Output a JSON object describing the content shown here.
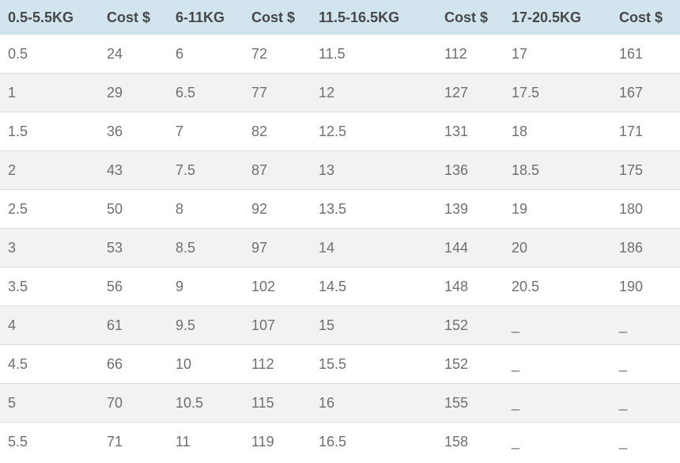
{
  "colors": {
    "header_bg": "#d2e4ee",
    "header_text": "#474747",
    "body_text": "#6f6f6f",
    "row_alt_bg": "#f2f2f2",
    "row_bg": "#ffffff",
    "row_border": "#dcdcdc"
  },
  "chart_data": {
    "type": "table",
    "columns": [
      "0.5-5.5KG",
      "Cost $",
      "6-11KG",
      "Cost $",
      "11.5-16.5KG",
      "Cost $",
      "17-20.5KG",
      "Cost $"
    ],
    "rows": [
      [
        "0.5",
        "24",
        "6",
        "72",
        "11.5",
        "112",
        "17",
        "161"
      ],
      [
        "1",
        "29",
        "6.5",
        "77",
        "12",
        "127",
        "17.5",
        "167"
      ],
      [
        "1.5",
        "36",
        "7",
        "82",
        "12.5",
        "131",
        "18",
        "171"
      ],
      [
        "2",
        "43",
        "7.5",
        "87",
        "13",
        "136",
        "18.5",
        "175"
      ],
      [
        "2.5",
        "50",
        "8",
        "92",
        "13.5",
        "139",
        "19",
        "180"
      ],
      [
        "3",
        "53",
        "8.5",
        "97",
        "14",
        "144",
        "20",
        "186"
      ],
      [
        "3.5",
        "56",
        "9",
        "102",
        "14.5",
        "148",
        "20.5",
        "190"
      ],
      [
        "4",
        "61",
        "9.5",
        "107",
        "15",
        "152",
        "_",
        "_"
      ],
      [
        "4.5",
        "66",
        "10",
        "112",
        "15.5",
        "152",
        "_",
        "_"
      ],
      [
        "5",
        "70",
        "10.5",
        "115",
        "16",
        "155",
        "_",
        "_"
      ],
      [
        "5.5",
        "71",
        "11",
        "119",
        "16.5",
        "158",
        "_",
        "_"
      ]
    ],
    "missing_value_marker": "_",
    "layout_hints": {
      "zebra_striping": true,
      "header_position": "top",
      "gridlines": "horizontal-only"
    }
  }
}
